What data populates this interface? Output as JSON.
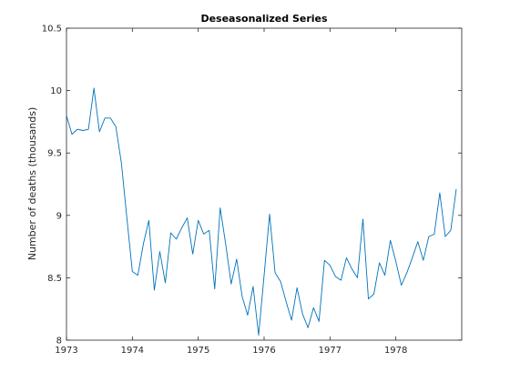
{
  "chart_data": {
    "type": "line",
    "title": "Deseasonalized Series",
    "xlabel": "",
    "ylabel": "Number of deaths (thousands)",
    "xlim": [
      1973,
      1979
    ],
    "ylim": [
      8,
      10.5
    ],
    "grid": false,
    "legend": "none",
    "x_ticks": [
      1973,
      1974,
      1975,
      1976,
      1977,
      1978
    ],
    "x_tick_labels": [
      "1973",
      "1974",
      "1975",
      "1976",
      "1977",
      "1978"
    ],
    "y_ticks": [
      8,
      8.5,
      9,
      9.5,
      10,
      10.5
    ],
    "y_tick_labels": [
      "8",
      "8.5",
      "9",
      "9.5",
      "10",
      "10.5"
    ],
    "colors": {
      "line": "#0072bd",
      "axis": "#262626"
    },
    "series": [
      {
        "x_start": 1973,
        "x_step": 0.08333333333,
        "values": [
          9.8,
          9.65,
          9.69,
          9.68,
          9.69,
          10.02,
          9.67,
          9.78,
          9.78,
          9.71,
          9.42,
          8.98,
          8.55,
          8.52,
          8.77,
          8.96,
          8.4,
          8.71,
          8.46,
          8.86,
          8.81,
          8.9,
          8.98,
          8.69,
          8.96,
          8.85,
          8.88,
          8.41,
          9.06,
          8.77,
          8.45,
          8.65,
          8.35,
          8.2,
          8.43,
          8.04,
          8.52,
          9.01,
          8.54,
          8.47,
          8.31,
          8.16,
          8.42,
          8.21,
          8.1,
          8.26,
          8.15,
          8.64,
          8.6,
          8.51,
          8.48,
          8.66,
          8.57,
          8.5,
          8.97,
          8.33,
          8.37,
          8.62,
          8.52,
          8.8,
          8.63,
          8.44,
          8.54,
          8.66,
          8.79,
          8.64,
          8.83,
          8.85,
          9.18,
          8.83,
          8.88,
          9.21
        ]
      }
    ]
  }
}
